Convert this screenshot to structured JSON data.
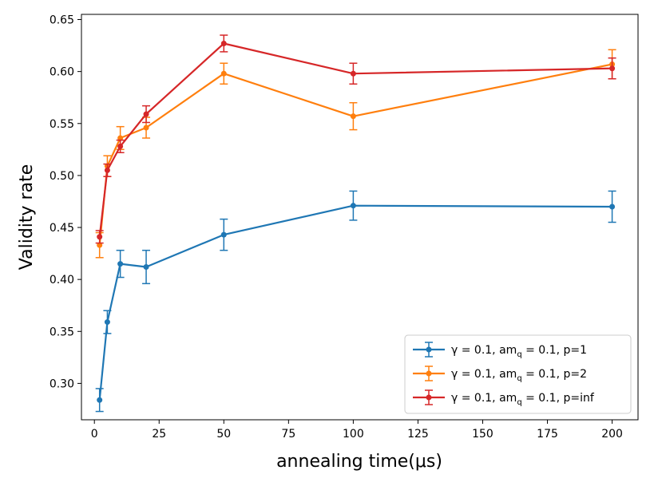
{
  "chart_data": {
    "type": "line",
    "title": "",
    "xlabel": "annealing time(μs)",
    "ylabel": "Validity rate",
    "xlim": [
      -5,
      210
    ],
    "ylim": [
      0.265,
      0.655
    ],
    "x_ticks": [
      0,
      25,
      50,
      75,
      100,
      125,
      150,
      175,
      200
    ],
    "y_ticks": [
      0.3,
      0.35,
      0.4,
      0.45,
      0.5,
      0.55,
      0.6,
      0.65
    ],
    "x_tick_labels": [
      "0",
      "25",
      "50",
      "75",
      "100",
      "125",
      "150",
      "175",
      "200"
    ],
    "y_tick_labels": [
      "0.30",
      "0.35",
      "0.40",
      "0.45",
      "0.50",
      "0.55",
      "0.60",
      "0.65"
    ],
    "x": [
      2,
      5,
      10,
      20,
      50,
      100,
      200
    ],
    "legend_position": "lower-right",
    "series": [
      {
        "name": "γ = 0.1, am_q = 0.1, p=1",
        "legend_prefix": "γ = 0.1, am",
        "legend_sub": "q",
        "legend_suffix": " = 0.1, p=1",
        "color": "#1f77b4",
        "values": [
          0.284,
          0.359,
          0.415,
          0.412,
          0.443,
          0.471,
          0.47
        ],
        "errors": [
          0.011,
          0.011,
          0.013,
          0.016,
          0.015,
          0.014,
          0.015
        ]
      },
      {
        "name": "γ = 0.1, am_q = 0.1, p=2",
        "legend_prefix": "γ = 0.1, am",
        "legend_sub": "q",
        "legend_suffix": " = 0.1, p=2",
        "color": "#ff7f0e",
        "values": [
          0.433,
          0.509,
          0.536,
          0.546,
          0.598,
          0.557,
          0.607
        ],
        "errors": [
          0.012,
          0.01,
          0.011,
          0.01,
          0.01,
          0.013,
          0.014
        ]
      },
      {
        "name": "γ = 0.1, am_q = 0.1, p=inf",
        "legend_prefix": "γ = 0.1, am",
        "legend_sub": "q",
        "legend_suffix": " = 0.1, p=inf",
        "color": "#d62728",
        "values": [
          0.441,
          0.505,
          0.528,
          0.559,
          0.627,
          0.598,
          0.603
        ],
        "errors": [
          0.006,
          0.006,
          0.006,
          0.008,
          0.008,
          0.01,
          0.01
        ]
      }
    ]
  }
}
